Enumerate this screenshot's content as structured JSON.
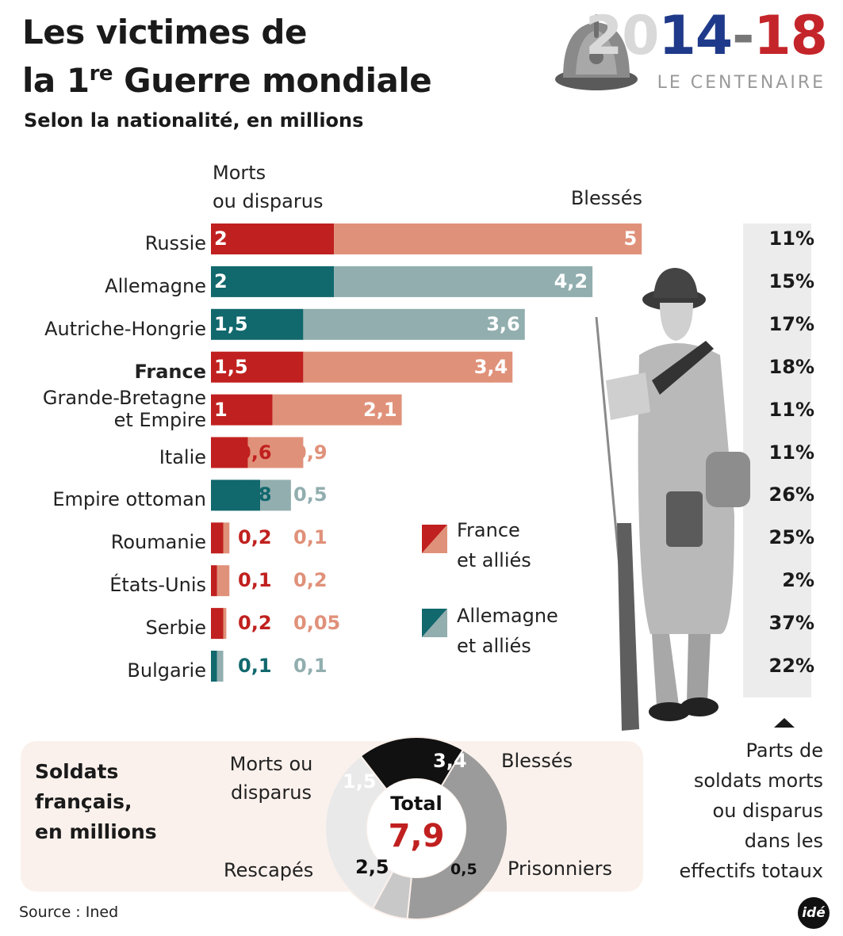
{
  "header": {
    "title_line1": "Les victimes de",
    "title_line2_prefix": "la 1",
    "title_line2_sup": "re",
    "title_line2_suffix": " Guerre mondiale",
    "subtitle": "Selon la nationalité, en millions"
  },
  "logo": {
    "year_grey": "20",
    "year_blue": "14",
    "year_dash": "-",
    "year_red": "18",
    "tagline": "LE CENTENAIRE"
  },
  "columns": {
    "deaths_line1": "Morts",
    "deaths_line2": "ou disparus",
    "wounded": "Blessés"
  },
  "colors": {
    "allies_dark": "#c0201f",
    "allies_light": "#e0917a",
    "central_dark": "#11686d",
    "central_light": "#92aeaf"
  },
  "chart_data": [
    {
      "type": "bar",
      "orientation": "horizontal",
      "stacked": true,
      "title": "Les victimes de la 1re Guerre mondiale",
      "subtitle": "Selon la nationalité, en millions",
      "series": [
        {
          "name": "Morts ou disparus",
          "values": [
            2,
            2,
            1.5,
            1.5,
            1,
            0.6,
            0.8,
            0.2,
            0.1,
            0.2,
            0.1
          ]
        },
        {
          "name": "Blessés",
          "values": [
            5,
            4.2,
            3.6,
            3.4,
            2.1,
            0.9,
            0.5,
            0.1,
            0.2,
            0.05,
            0.1
          ]
        }
      ],
      "rows": [
        {
          "country": [
            "Russie"
          ],
          "dead": 2,
          "dead_label": "2",
          "wounded": 5,
          "wounded_label": "5",
          "share": "11%",
          "side": "allies",
          "bold": false
        },
        {
          "country": [
            "Allemagne"
          ],
          "dead": 2,
          "dead_label": "2",
          "wounded": 4.2,
          "wounded_label": "4,2",
          "share": "15%",
          "side": "central",
          "bold": false
        },
        {
          "country": [
            "Autriche-Hongrie"
          ],
          "dead": 1.5,
          "dead_label": "1,5",
          "wounded": 3.6,
          "wounded_label": "3,6",
          "share": "17%",
          "side": "central",
          "bold": false
        },
        {
          "country": [
            "France"
          ],
          "dead": 1.5,
          "dead_label": "1,5",
          "wounded": 3.4,
          "wounded_label": "3,4",
          "share": "18%",
          "side": "allies",
          "bold": true
        },
        {
          "country": [
            "Grande-Bretagne",
            "et Empire"
          ],
          "dead": 1,
          "dead_label": "1",
          "wounded": 2.1,
          "wounded_label": "2,1",
          "share": "11%",
          "side": "allies",
          "bold": false
        },
        {
          "country": [
            "Italie"
          ],
          "dead": 0.6,
          "dead_label": "0,6",
          "wounded": 0.9,
          "wounded_label": "0,9",
          "share": "11%",
          "side": "allies",
          "bold": false
        },
        {
          "country": [
            "Empire ottoman"
          ],
          "dead": 0.8,
          "dead_label": "0,8",
          "wounded": 0.5,
          "wounded_label": "0,5",
          "share": "26%",
          "side": "central",
          "bold": false
        },
        {
          "country": [
            "Roumanie"
          ],
          "dead": 0.2,
          "dead_label": "0,2",
          "wounded": 0.1,
          "wounded_label": "0,1",
          "share": "25%",
          "side": "allies",
          "bold": false
        },
        {
          "country": [
            "États-Unis"
          ],
          "dead": 0.1,
          "dead_label": "0,1",
          "wounded": 0.2,
          "wounded_label": "0,2",
          "share": "2%",
          "side": "allies",
          "bold": false
        },
        {
          "country": [
            "Serbie"
          ],
          "dead": 0.2,
          "dead_label": "0,2",
          "wounded": 0.05,
          "wounded_label": "0,05",
          "share": "37%",
          "side": "allies",
          "bold": false
        },
        {
          "country": [
            "Bulgarie"
          ],
          "dead": 0.1,
          "dead_label": "0,1",
          "wounded": 0.1,
          "wounded_label": "0,1",
          "share": "22%",
          "side": "central",
          "bold": false
        }
      ],
      "legend": [
        {
          "label": [
            "France",
            "et alliés"
          ],
          "side": "allies"
        },
        {
          "label": [
            "Allemagne",
            "et alliés"
          ],
          "side": "central"
        }
      ],
      "share_note": [
        "Parts de",
        "soldats morts",
        "ou disparus",
        "dans les",
        "effectifs totaux"
      ]
    },
    {
      "type": "pie",
      "donut": true,
      "title": [
        "Soldats",
        "français,",
        "en millions"
      ],
      "center_label": "Total",
      "center_value": "7,9",
      "total": 7.9,
      "slices": [
        {
          "label": [
            "Morts ou",
            "disparus"
          ],
          "value": 1.5,
          "value_label": "1,5",
          "color": "#111111"
        },
        {
          "label": [
            "Blessés"
          ],
          "value": 3.4,
          "value_label": "3,4",
          "color": "#9b9b9b"
        },
        {
          "label": [
            "Prisonniers"
          ],
          "value": 0.5,
          "value_label": "0,5",
          "color": "#c8c8c8"
        },
        {
          "label": [
            "Rescapés"
          ],
          "value": 2.5,
          "value_label": "2,5",
          "color": "#e9e9e9"
        }
      ]
    }
  ],
  "footer": {
    "source": "Source : Ined",
    "agency": "idé"
  }
}
